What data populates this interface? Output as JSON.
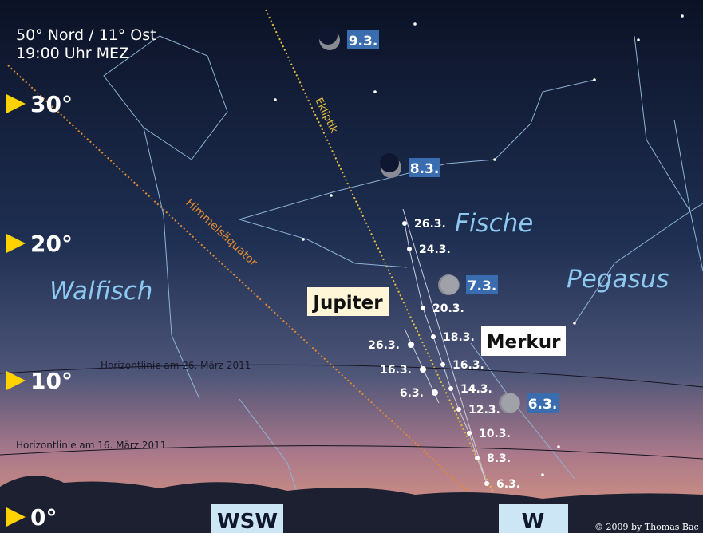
{
  "location": [
    "50° Nord / 11° Ost",
    "19:00 Uhr MEZ"
  ],
  "altitudes": [
    "30°",
    "20°",
    "10°",
    "0°"
  ],
  "lines": {
    "ecliptic": "Ekliptik",
    "equator": "Himmelsäquator",
    "horizon_26": "Horizontlinie am 26. März 2011",
    "horizon_16": "Horizontlinie am 16. März 2011"
  },
  "constellations": [
    "Fische",
    "Walfisch",
    "Pegasus"
  ],
  "moon": [
    "9.3.",
    "8.3.",
    "7.3.",
    "6.3."
  ],
  "planets": {
    "jupiter": {
      "label": "Jupiter",
      "dates": [
        "26.3.",
        "16.3.",
        "6.3."
      ]
    },
    "mercury": {
      "label": "Merkur",
      "dates": [
        "26.3.",
        "24.3.",
        "20.3.",
        "18.3.",
        "16.3.",
        "14.3.",
        "12.3.",
        "10.3.",
        "8.3.",
        "6.3."
      ]
    }
  },
  "directions": [
    "WSW",
    "W"
  ],
  "copyright": "© 2009 by Thomas Bac"
}
